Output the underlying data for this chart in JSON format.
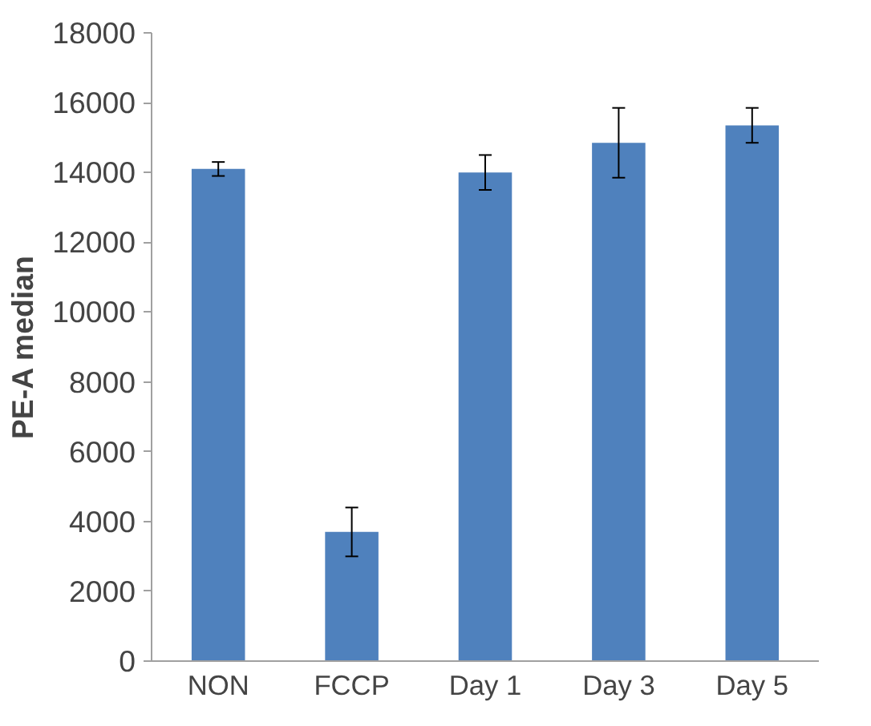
{
  "chart_data": {
    "type": "bar",
    "ylabel": "PE-A median",
    "categories": [
      "NON",
      "FCCP",
      "Day 1",
      "Day 3",
      "Day 5"
    ],
    "values": [
      14100,
      3700,
      14000,
      14850,
      15350
    ],
    "errors": [
      200,
      700,
      500,
      1000,
      500
    ],
    "color": "#4f81bd",
    "ylim": [
      0,
      18000
    ],
    "yticks": [
      0,
      2000,
      4000,
      6000,
      8000,
      10000,
      12000,
      14000,
      16000,
      18000
    ],
    "grid": false
  }
}
